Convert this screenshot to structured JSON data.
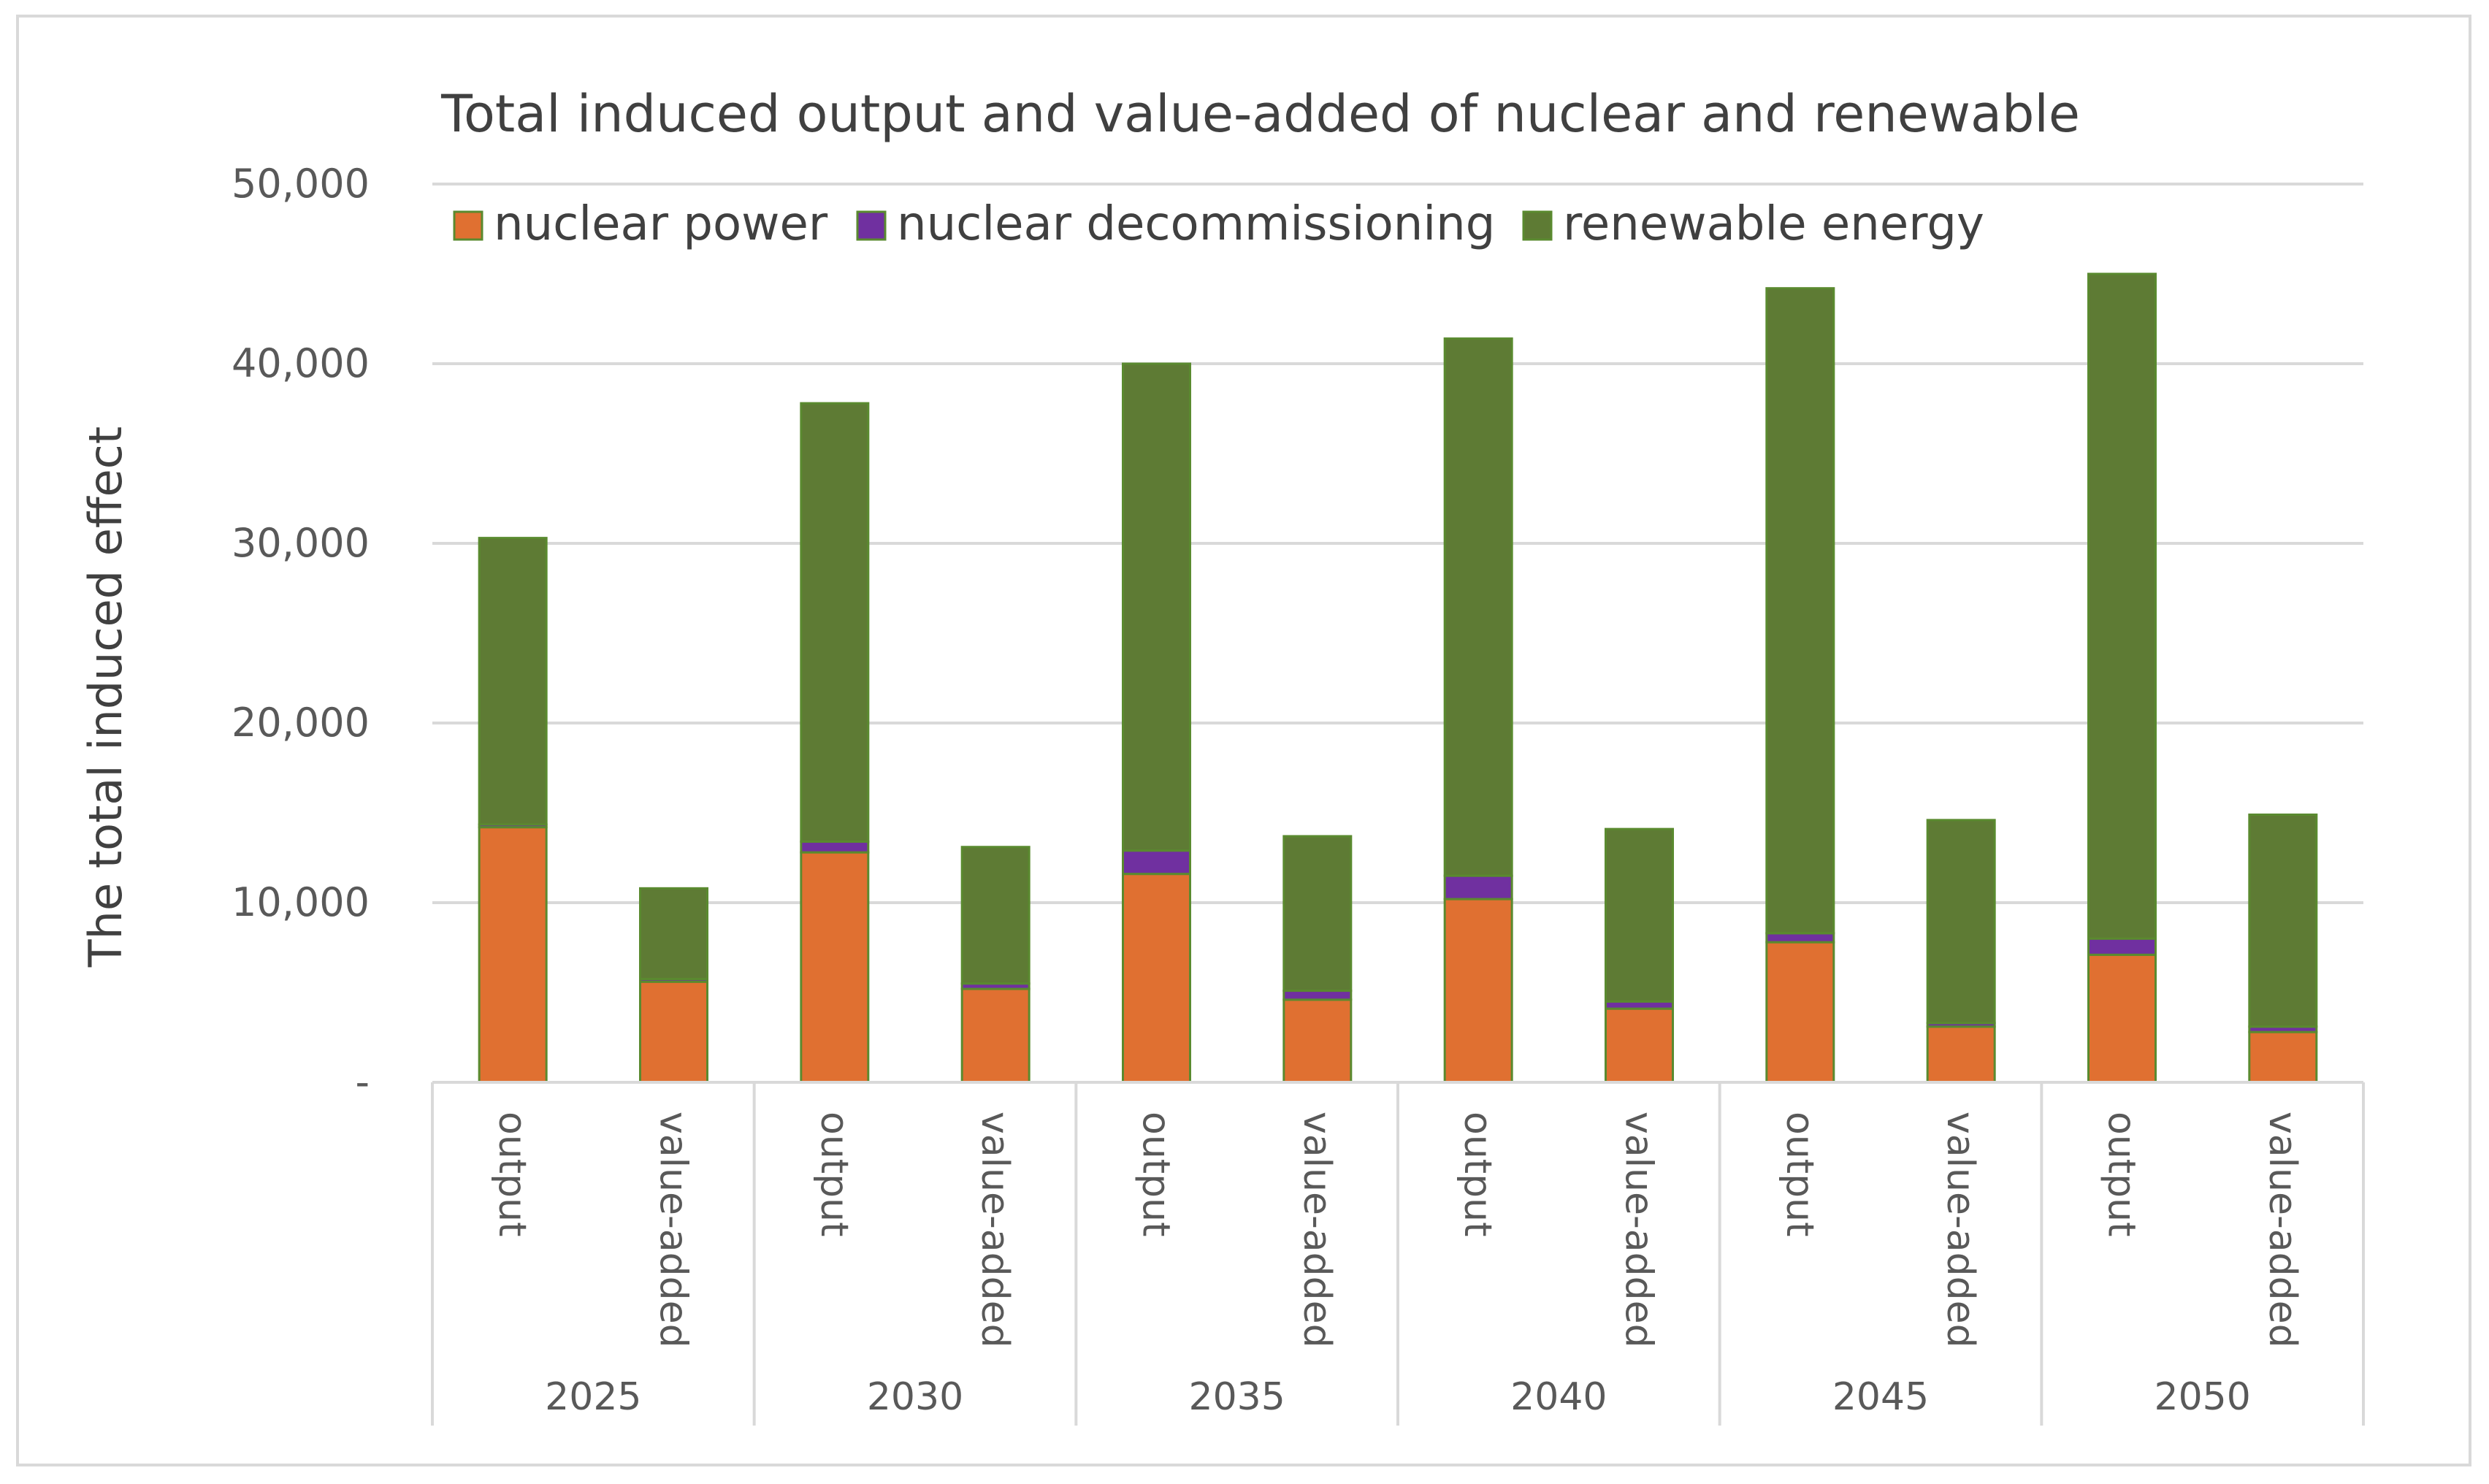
{
  "chart_data": {
    "type": "bar",
    "stacked": true,
    "title": "Total induced output and value-added of nuclear and renewable",
    "ylabel": "The total induced effect",
    "xlabel": "",
    "ylim": [
      0,
      50000
    ],
    "yticks": [
      0,
      10000,
      20000,
      30000,
      40000,
      50000
    ],
    "ytick_labels": [
      "-",
      "10,000",
      "20,000",
      "30,000",
      "40,000",
      "50,000"
    ],
    "grid": true,
    "legend_position": "top",
    "groups": [
      "2025",
      "2030",
      "2035",
      "2040",
      "2045",
      "2050"
    ],
    "subcategories": [
      "output",
      "value-added"
    ],
    "categories": [
      "2025 output",
      "2025 value-added",
      "2030 output",
      "2030 value-added",
      "2035 output",
      "2035 value-added",
      "2040 output",
      "2040 value-added",
      "2045 output",
      "2045 value-added",
      "2050 output",
      "2050 value-added"
    ],
    "series": [
      {
        "name": "nuclear power",
        "color": "#e07031",
        "values": [
          14200,
          5600,
          12800,
          5200,
          11600,
          4600,
          10200,
          4100,
          7800,
          3100,
          7100,
          2800
        ]
      },
      {
        "name": "nuclear decommissioning",
        "color": "#7030a0",
        "values": [
          150,
          150,
          600,
          300,
          1300,
          500,
          1300,
          400,
          500,
          200,
          900,
          300
        ]
      },
      {
        "name": "renewable energy",
        "color": "#5e7b34",
        "values": [
          15950,
          5050,
          24400,
          7600,
          27100,
          8600,
          29900,
          9600,
          35900,
          11300,
          37000,
          11800
        ]
      }
    ]
  }
}
